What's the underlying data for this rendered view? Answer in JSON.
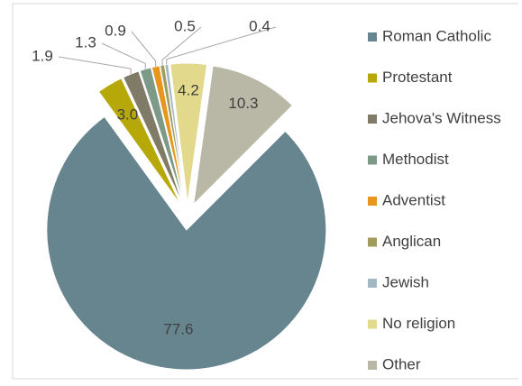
{
  "chart_data": {
    "type": "pie",
    "categories": [
      "Roman Catholic",
      "Protestant",
      "Jehova's Witness",
      "Methodist",
      "Adventist",
      "Anglican",
      "Jewish",
      "No religion",
      "Other"
    ],
    "values": [
      77.6,
      3.0,
      1.9,
      1.3,
      0.9,
      0.5,
      0.4,
      4.2,
      10.3
    ],
    "value_labels": [
      "77.6",
      "3.0",
      "1.9",
      "1.3",
      "0.9",
      "0.5",
      "0.4",
      "4.2",
      "10.3"
    ],
    "colors": [
      "#66858f",
      "#b6a808",
      "#7f7b66",
      "#7c9a87",
      "#e8951d",
      "#a19b5e",
      "#a2b8c2",
      "#e2d98c",
      "#b9b8a7"
    ],
    "legend": "right"
  }
}
